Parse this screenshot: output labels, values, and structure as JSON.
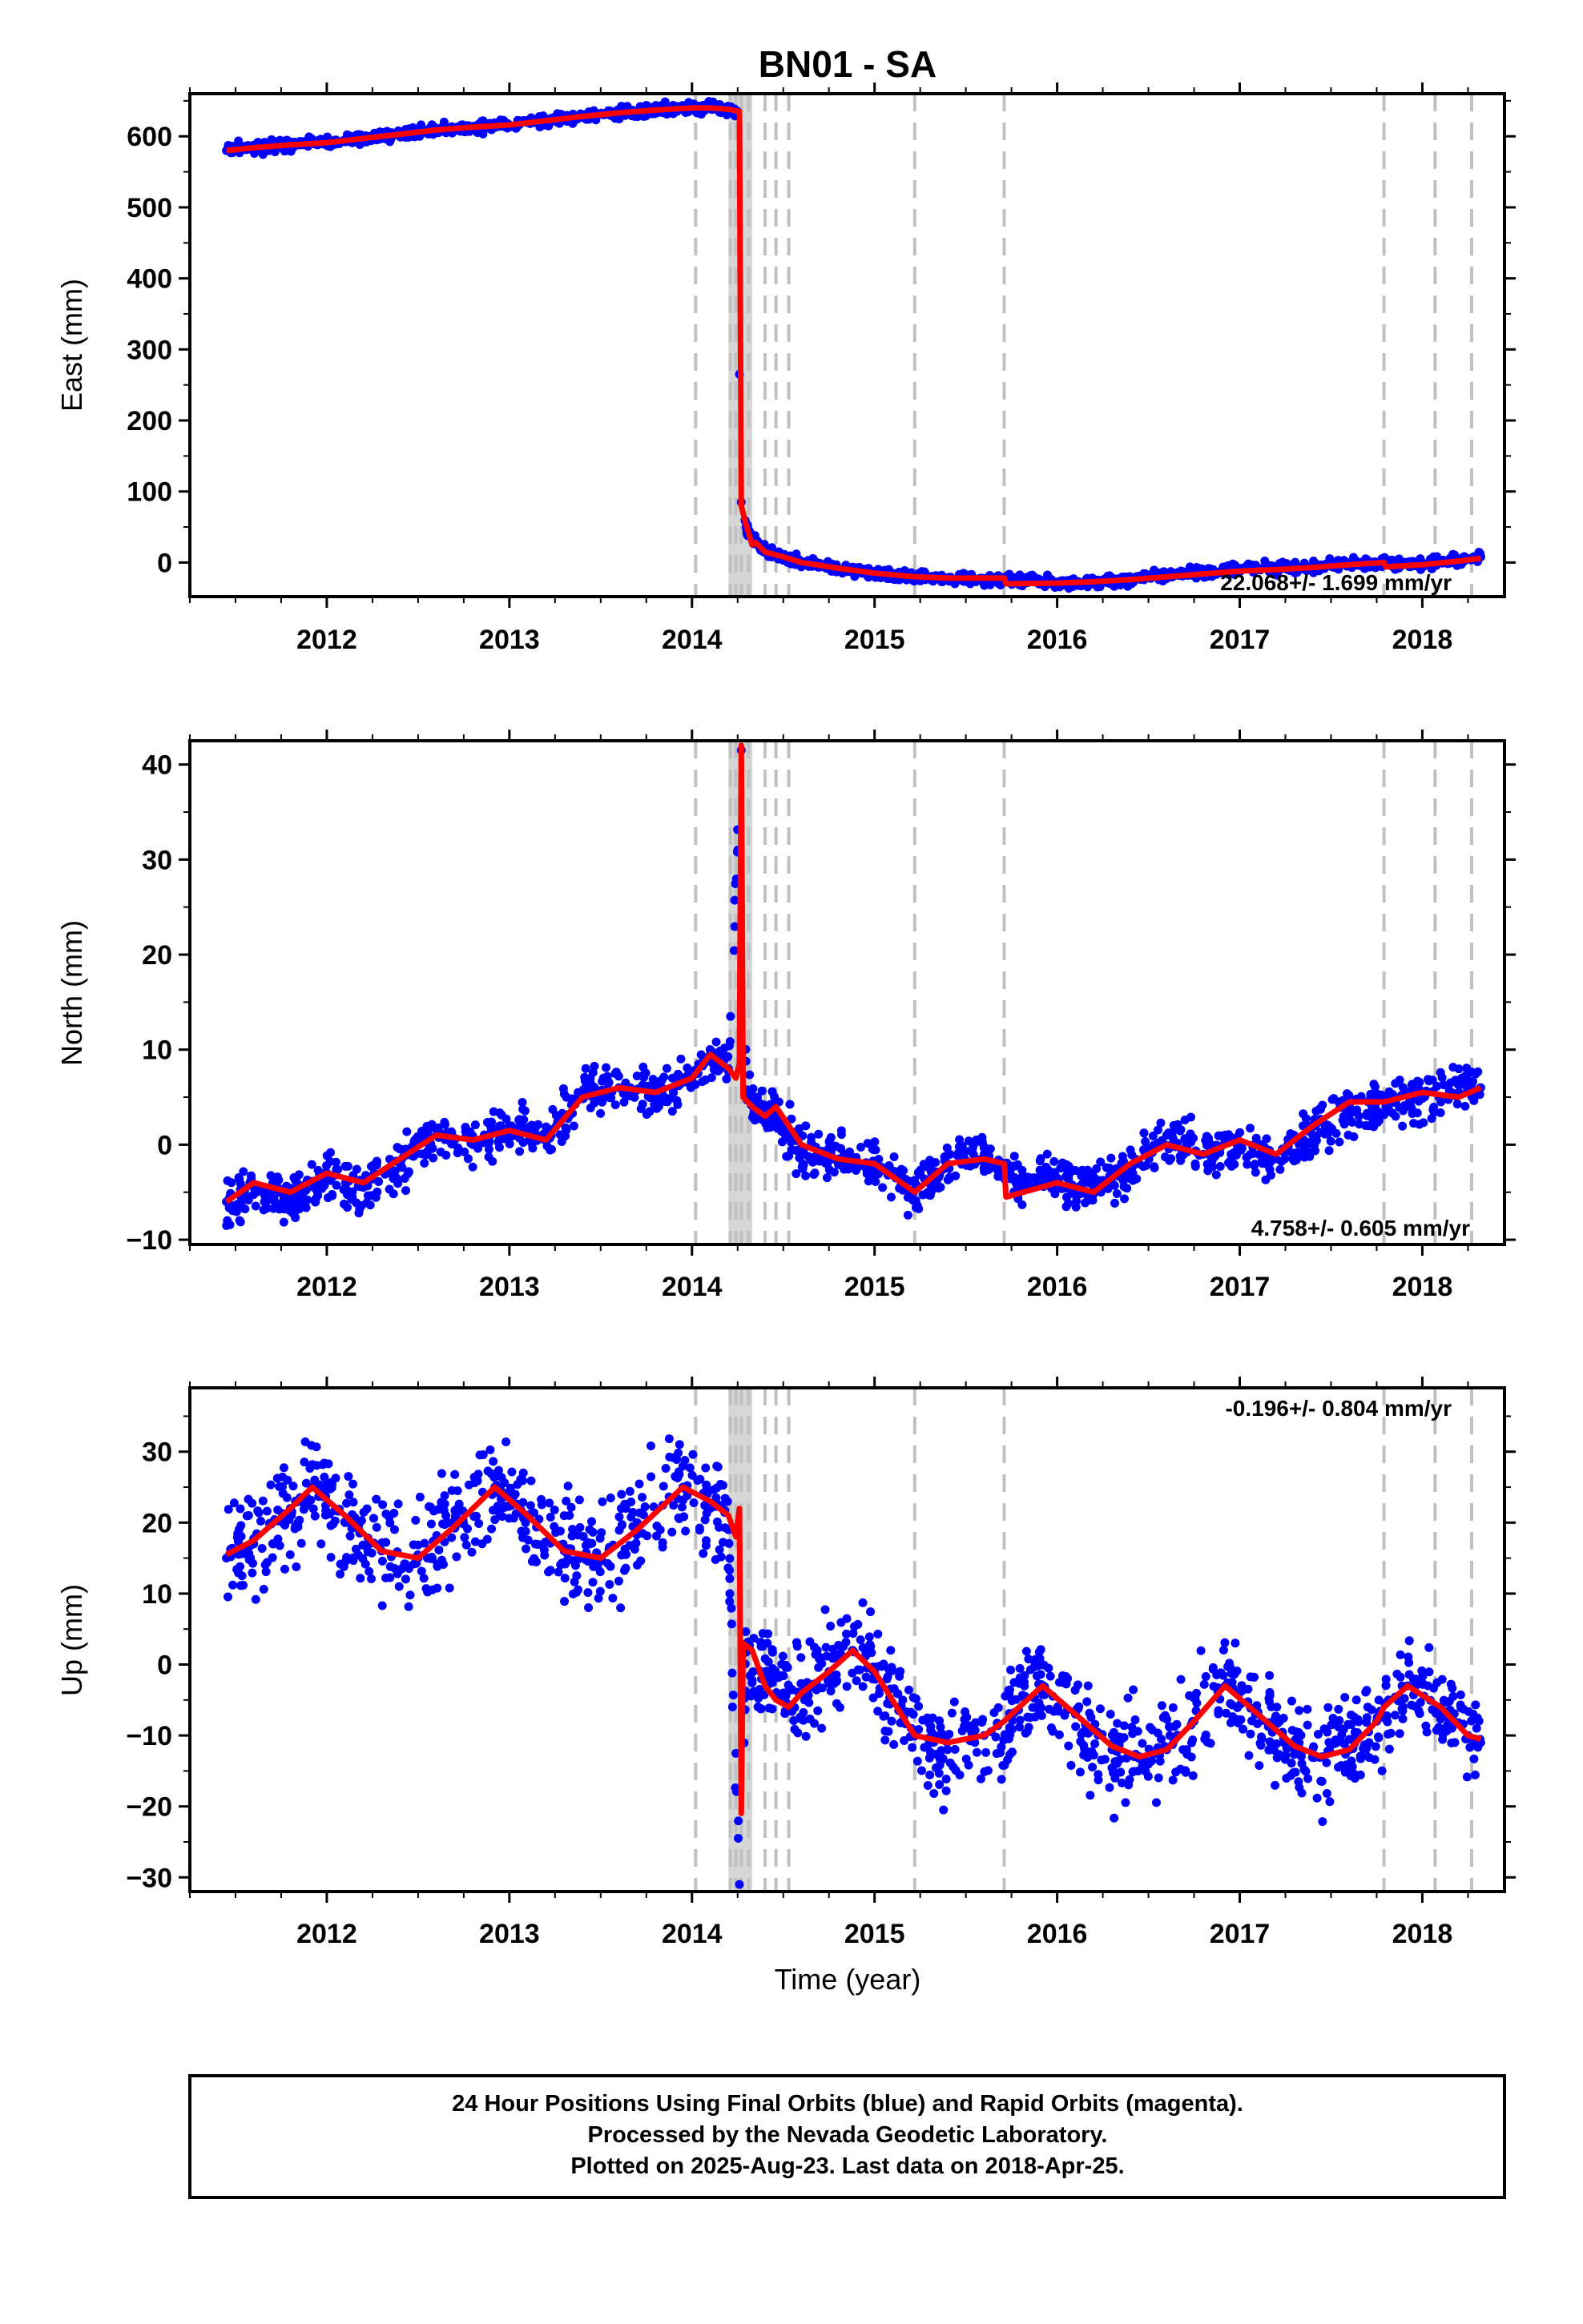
{
  "title": "BN01 - SA",
  "colors": {
    "final_orbits": "#0000ff",
    "model_fit": "#ff0000",
    "event_lines": "#c0c0c0",
    "frame": "#000000"
  },
  "xaxis": {
    "label": "Time (year)",
    "range": [
      2011.25,
      2018.45
    ],
    "ticks": [
      2012,
      2013,
      2014,
      2015,
      2016,
      2017,
      2018
    ],
    "tick_labels": [
      "2012",
      "2013",
      "2014",
      "2015",
      "2016",
      "2017",
      "2018"
    ]
  },
  "event_lines": [
    2014.02,
    2014.21,
    2014.24,
    2014.27,
    2014.31,
    2014.4,
    2014.46,
    2014.53,
    2015.22,
    2015.71,
    2017.79,
    2018.07,
    2018.27
  ],
  "shaded_band": [
    2014.2,
    2014.33
  ],
  "footer": {
    "line1": "24 Hour Positions Using Final Orbits (blue) and Rapid Orbits (magenta).",
    "line2": "Processed by the Nevada Geodetic Laboratory.",
    "line3": "Plotted on 2025-Aug-23. Last data on 2018-Apr-25."
  },
  "chart_data": [
    {
      "type": "scatter",
      "component": "East",
      "ylabel": "East (mm)",
      "ylim": [
        -48,
        660
      ],
      "yticks": [
        0,
        100,
        200,
        300,
        400,
        500,
        600
      ],
      "ytick_labels": [
        "0",
        "100",
        "200",
        "300",
        "400",
        "500",
        "600"
      ],
      "rate_label": "22.068+/- 1.699 mm/yr",
      "rate_position": "bottom-right",
      "series": [
        {
          "name": "Final Orbits (blue)",
          "style": "points",
          "x": [
            2011.45,
            2011.6,
            2011.8,
            2012.0,
            2012.2,
            2012.4,
            2012.6,
            2012.8,
            2013.0,
            2013.2,
            2013.4,
            2013.6,
            2013.8,
            2014.0,
            2014.1,
            2014.2,
            2014.25,
            2014.26,
            2014.27,
            2014.3,
            2014.35,
            2014.4,
            2014.5,
            2014.6,
            2014.8,
            2015.0,
            2015.2,
            2015.4,
            2015.6,
            2015.8,
            2016.0,
            2016.2,
            2016.4,
            2016.6,
            2016.8,
            2017.0,
            2017.2,
            2017.4,
            2017.6,
            2017.8,
            2018.0,
            2018.2,
            2018.32
          ],
          "y": [
            580,
            584,
            588,
            591,
            597,
            603,
            609,
            613,
            616,
            622,
            628,
            633,
            637,
            640,
            641,
            638,
            635,
            265,
            85,
            45,
            30,
            18,
            8,
            0,
            -8,
            -15,
            -20,
            -22,
            -23,
            -25,
            -28,
            -27,
            -24,
            -15,
            -12,
            -10,
            -8,
            -5,
            -2,
            0,
            -2,
            4,
            8
          ]
        },
        {
          "name": "Model fit",
          "style": "line",
          "x": [
            2011.45,
            2011.6,
            2011.8,
            2012.0,
            2012.2,
            2012.4,
            2012.6,
            2012.8,
            2013.0,
            2013.2,
            2013.4,
            2013.6,
            2013.8,
            2014.0,
            2014.1,
            2014.2,
            2014.26,
            2014.27,
            2014.3,
            2014.33,
            2014.35,
            2014.4,
            2014.5,
            2014.6,
            2014.8,
            2015.0,
            2015.22,
            2015.4,
            2015.71,
            2015.72,
            2016.0,
            2016.2,
            2016.4,
            2016.6,
            2016.8,
            2017.0,
            2017.2,
            2017.4,
            2017.6,
            2017.79,
            2017.8,
            2018.0,
            2018.2,
            2018.32
          ],
          "y": [
            580,
            584,
            588,
            591,
            597,
            603,
            609,
            613,
            616,
            622,
            628,
            633,
            637,
            640,
            640,
            638,
            635,
            80,
            50,
            25,
            28,
            15,
            8,
            0,
            -8,
            -15,
            -20,
            -22,
            -22,
            -30,
            -29,
            -27,
            -24,
            -20,
            -16,
            -12,
            -10,
            -7,
            -3,
            0,
            -6,
            -3,
            2,
            6
          ]
        }
      ]
    },
    {
      "type": "scatter",
      "component": "North",
      "ylabel": "North (mm)",
      "ylim": [
        -10.5,
        42.5
      ],
      "yticks": [
        -10,
        0,
        10,
        20,
        30,
        40
      ],
      "ytick_labels": [
        "−10",
        "0",
        "10",
        "20",
        "30",
        "40"
      ],
      "rate_label": "4.758+/- 0.605 mm/yr",
      "rate_position": "bottom-right",
      "series": [
        {
          "name": "Final Orbits (blue)",
          "style": "points",
          "x": [
            2011.45,
            2011.6,
            2011.8,
            2012.0,
            2012.2,
            2012.4,
            2012.6,
            2012.8,
            2013.0,
            2013.2,
            2013.4,
            2013.6,
            2013.8,
            2014.0,
            2014.1,
            2014.2,
            2014.27,
            2014.3,
            2014.4,
            2014.5,
            2014.6,
            2014.8,
            2015.0,
            2015.2,
            2015.4,
            2015.6,
            2015.8,
            2016.0,
            2016.2,
            2016.4,
            2016.6,
            2016.8,
            2017.0,
            2017.2,
            2017.4,
            2017.6,
            2017.8,
            2018.0,
            2018.2,
            2018.32
          ],
          "y": [
            -6,
            -4.5,
            -6,
            -3,
            -4.5,
            -2,
            1,
            0,
            2,
            0.5,
            5.5,
            6,
            5,
            7,
            9.5,
            8,
            41.5,
            5,
            3.5,
            2,
            -0.5,
            -1.5,
            -2,
            -5,
            -2,
            -1,
            -4,
            -3.5,
            -4.5,
            -3,
            1,
            -1,
            -0.5,
            -1.5,
            1,
            3.5,
            4,
            5,
            5.5,
            6
          ]
        },
        {
          "name": "Model fit",
          "style": "line",
          "x": [
            2011.45,
            2011.6,
            2011.8,
            2012.0,
            2012.2,
            2012.4,
            2012.6,
            2012.8,
            2013.0,
            2013.2,
            2013.4,
            2013.6,
            2013.8,
            2014.0,
            2014.1,
            2014.2,
            2014.24,
            2014.26,
            2014.27,
            2014.28,
            2014.33,
            2014.4,
            2014.46,
            2014.53,
            2014.6,
            2014.8,
            2015.0,
            2015.22,
            2015.4,
            2015.6,
            2015.71,
            2015.72,
            2016.0,
            2016.2,
            2016.4,
            2016.6,
            2016.8,
            2017.0,
            2017.2,
            2017.4,
            2017.6,
            2017.79,
            2018.0,
            2018.2,
            2018.32
          ],
          "y": [
            -6,
            -4,
            -5,
            -3,
            -4,
            -1.5,
            1,
            0.5,
            1.5,
            0.5,
            5,
            6,
            5.5,
            7,
            9.5,
            8,
            7,
            8.5,
            42,
            5,
            4,
            3,
            4,
            2,
            0,
            -1.5,
            -2,
            -5,
            -2,
            -1.5,
            -2,
            -5.5,
            -4,
            -5,
            -2,
            0,
            -1,
            0.5,
            -1,
            2,
            4.5,
            4.5,
            5.5,
            5,
            6
          ]
        }
      ]
    },
    {
      "type": "scatter",
      "component": "Up",
      "ylabel": "Up (mm)",
      "ylim": [
        -32,
        39
      ],
      "yticks": [
        -30,
        -20,
        -10,
        0,
        10,
        20,
        30
      ],
      "ytick_labels": [
        "−30",
        "−20",
        "−10",
        "0",
        "10",
        "20",
        "30"
      ],
      "rate_label": "-0.196+/- 0.804 mm/yr",
      "rate_position": "top-right",
      "series": [
        {
          "name": "Final Orbits (blue)",
          "style": "points",
          "x": [
            2011.45,
            2011.6,
            2011.8,
            2011.92,
            2012.1,
            2012.3,
            2012.5,
            2012.7,
            2012.92,
            2013.1,
            2013.3,
            2013.5,
            2013.7,
            2013.95,
            2014.1,
            2014.2,
            2014.26,
            2014.3,
            2014.4,
            2014.5,
            2014.6,
            2014.75,
            2014.88,
            2015.0,
            2015.2,
            2015.4,
            2015.6,
            2015.75,
            2015.92,
            2016.1,
            2016.3,
            2016.45,
            2016.6,
            2016.75,
            2016.92,
            2017.1,
            2017.3,
            2017.45,
            2017.6,
            2017.75,
            2017.92,
            2018.1,
            2018.25,
            2018.32
          ],
          "y": [
            15,
            17,
            22,
            25,
            20,
            16,
            15,
            20,
            25,
            21,
            16,
            15,
            20,
            25,
            22,
            19,
            -31,
            3,
            -2,
            -4,
            -4,
            -1,
            2,
            -1,
            -9,
            -12,
            -10,
            -7,
            -3,
            -7,
            -12,
            -13,
            -12,
            -8,
            -3,
            -7,
            -12,
            -13,
            -12,
            -8,
            -3,
            -6,
            -10,
            -11
          ]
        },
        {
          "name": "Model fit",
          "style": "line",
          "x": [
            2011.45,
            2011.6,
            2011.8,
            2011.92,
            2012.1,
            2012.3,
            2012.5,
            2012.7,
            2012.92,
            2013.1,
            2013.3,
            2013.5,
            2013.7,
            2013.95,
            2014.1,
            2014.2,
            2014.24,
            2014.26,
            2014.27,
            2014.28,
            2014.33,
            2014.4,
            2014.46,
            2014.53,
            2014.6,
            2014.75,
            2014.88,
            2015.0,
            2015.22,
            2015.4,
            2015.6,
            2015.71,
            2015.75,
            2015.92,
            2016.1,
            2016.3,
            2016.45,
            2016.6,
            2016.75,
            2016.92,
            2017.1,
            2017.3,
            2017.45,
            2017.6,
            2017.75,
            2017.79,
            2017.92,
            2018.1,
            2018.25,
            2018.32
          ],
          "y": [
            15.5,
            17.5,
            22,
            25,
            21,
            16,
            15,
            19.5,
            25,
            21,
            16,
            15,
            19,
            25,
            23,
            21,
            18,
            22,
            -21,
            3,
            2,
            -3,
            -5,
            -6,
            -4,
            -1,
            2,
            -1,
            -10,
            -11,
            -10,
            -8,
            -7,
            -3,
            -7,
            -11.5,
            -13,
            -12,
            -8,
            -3,
            -7,
            -11.5,
            -13,
            -12,
            -8,
            -6,
            -3,
            -6,
            -10,
            -10.5
          ]
        }
      ]
    }
  ]
}
